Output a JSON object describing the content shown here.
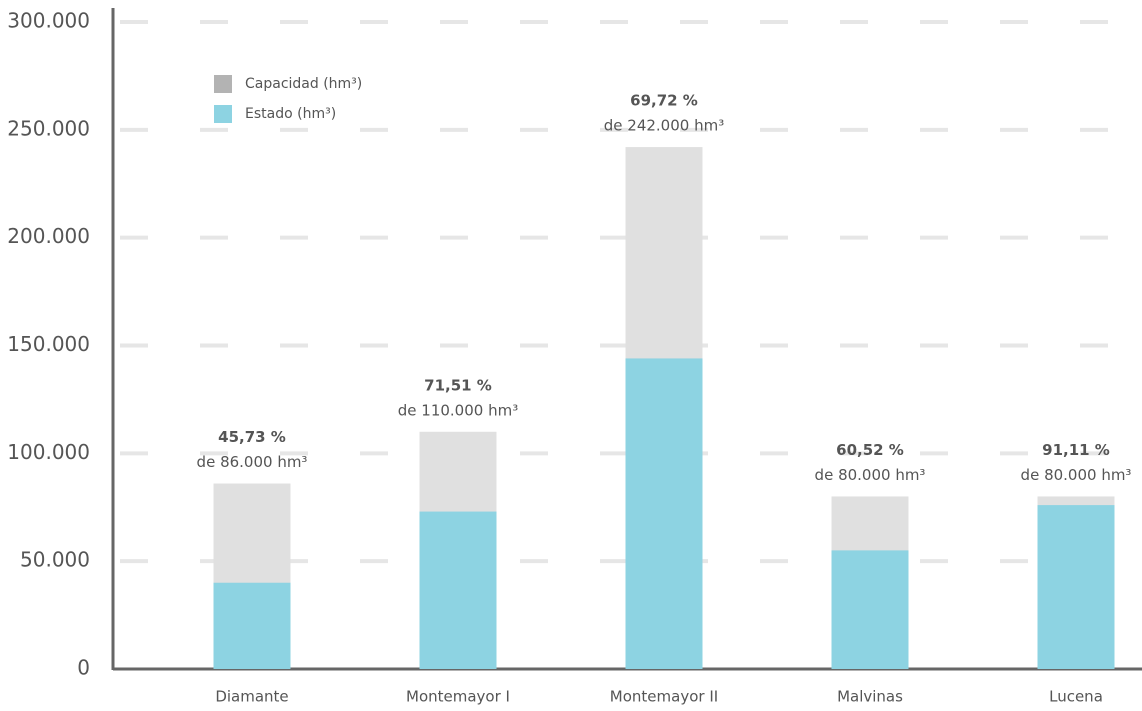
{
  "chart_data": {
    "type": "bar",
    "categories": [
      "Diamante",
      "Montemayor I",
      "Montemayor II",
      "Malvinas",
      "Lucena"
    ],
    "series": [
      {
        "name": "Capacidad (hm³)",
        "color": "#e0e0e0",
        "values": [
          86000,
          110000,
          242000,
          80000,
          80000
        ],
        "value_labels": [
          "de 86.000 hm³",
          "de 110.000 hm³",
          "de 242.000 hm³",
          "de 80.000 hm³",
          "de 80.000 hm³"
        ]
      },
      {
        "name": "Estado (hm³)",
        "color": "#8dd3e2",
        "values": [
          40000,
          73000,
          144000,
          55000,
          76000
        ]
      }
    ],
    "percent": {
      "values": [
        45.73,
        71.51,
        69.72,
        60.52,
        91.11
      ],
      "value_labels": [
        "45,73 %",
        "71,51 %",
        "69,72 %",
        "60,52 %",
        "91,11 %"
      ]
    },
    "legend_color": "#b3b3b3",
    "ylim": [
      0,
      300000
    ],
    "yticks": [
      0,
      {
        "value": 50000,
        "label": "50.000"
      },
      {
        "value": 100000,
        "label": "100.000"
      },
      {
        "value": 150000,
        "label": "150.000"
      },
      {
        "value": 200000,
        "label": "200.000"
      },
      {
        "value": 250000,
        "label": "250.000"
      },
      {
        "value": 300000,
        "label": "300.000"
      }
    ],
    "grid": true
  }
}
